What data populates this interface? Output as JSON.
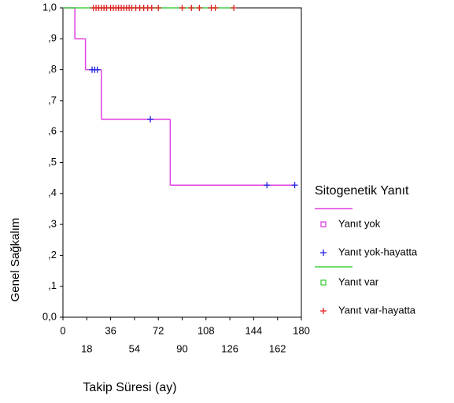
{
  "chart_data": {
    "type": "kaplan-meier",
    "x_label": "Takip Süresi (ay)",
    "y_label": "Genel Sağkalım",
    "legend_title": "Sitogenetik Yanıt",
    "legend": "right",
    "xlim": [
      0,
      180
    ],
    "xticks": [
      0,
      18,
      36,
      54,
      72,
      90,
      108,
      126,
      144,
      162,
      180
    ],
    "ylim": [
      0,
      1
    ],
    "yticks": [
      {
        "value": 0,
        "label": "0,0"
      },
      {
        "value": 0.1,
        "label": ",1"
      },
      {
        "value": 0.2,
        "label": ",2"
      },
      {
        "value": 0.3,
        "label": ",3"
      },
      {
        "value": 0.4,
        "label": ",4"
      },
      {
        "value": 0.5,
        "label": ",5"
      },
      {
        "value": 0.6,
        "label": ",6"
      },
      {
        "value": 0.7,
        "label": ",7"
      },
      {
        "value": 0.8,
        "label": ",8"
      },
      {
        "value": 0.9,
        "label": ",9"
      },
      {
        "value": 1,
        "label": "1,0"
      }
    ],
    "series": [
      {
        "name": "Yanıt yok",
        "kind": "step",
        "color": "#e040e0",
        "x": [
          0,
          9,
          17,
          29,
          81,
          175
        ],
        "values": [
          1,
          0.9,
          0.8,
          0.64,
          0.427,
          0.427
        ]
      },
      {
        "name": "Yanıt yok-hayatta",
        "kind": "censor",
        "color": "#2020e0",
        "x": [
          22,
          24,
          26,
          66,
          154,
          175
        ],
        "values": [
          0.8,
          0.8,
          0.8,
          0.64,
          0.427,
          0.427
        ]
      },
      {
        "name": "Yanıt var",
        "kind": "step",
        "color": "#40d040",
        "x": [
          0,
          129
        ],
        "values": [
          1,
          1
        ]
      },
      {
        "name": "Yanıt var-hayatta",
        "kind": "censor",
        "color": "#e02020",
        "x": [
          23,
          25,
          27,
          29,
          31,
          33,
          36,
          38,
          40,
          42,
          44,
          46,
          48,
          50,
          52,
          55,
          58,
          61,
          64,
          67,
          72,
          90,
          97,
          103,
          112,
          115,
          129
        ],
        "values": [
          1,
          1,
          1,
          1,
          1,
          1,
          1,
          1,
          1,
          1,
          1,
          1,
          1,
          1,
          1,
          1,
          1,
          1,
          1,
          1,
          1,
          1,
          1,
          1,
          1,
          1,
          1
        ]
      }
    ]
  }
}
